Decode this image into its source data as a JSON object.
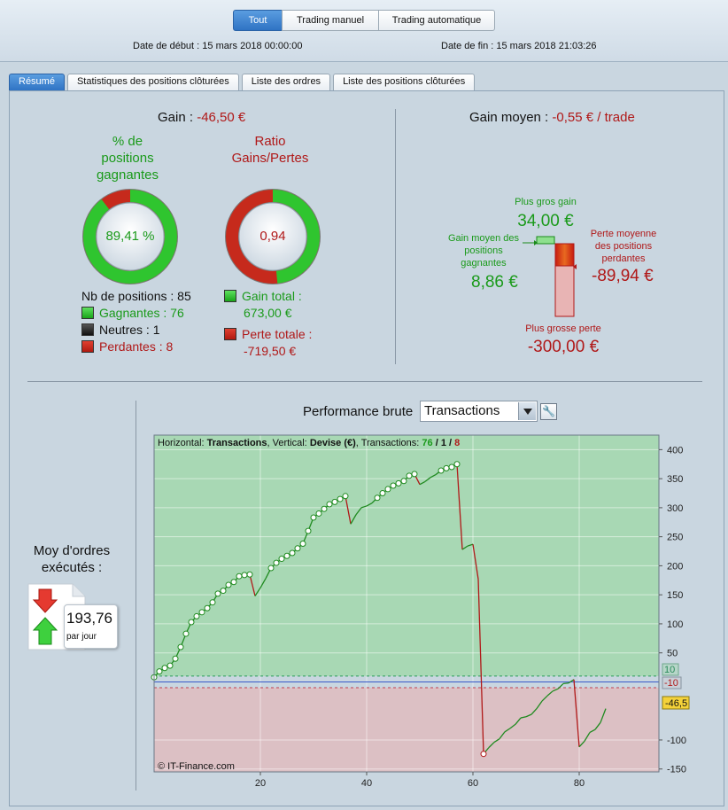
{
  "modes": [
    "Tout",
    "Trading manuel",
    "Trading automatique"
  ],
  "dates": {
    "start_label": "Date de début :",
    "start_value": "15 mars 2018 00:00:00",
    "end_label": "Date de fin :",
    "end_value": "15 mars 2018 21:03:26"
  },
  "tabs": [
    "Résumé",
    "Statistiques des positions clôturées",
    "Liste des ordres",
    "Liste des positions clôturées"
  ],
  "summary": {
    "gain_label": "Gain :",
    "gain_value": "-46,50 €",
    "win_pct_title": "% de positions gagnantes",
    "win_pct_value": "89,41 %",
    "win_pct_fraction": 0.8941,
    "ratio_title": "Ratio Gains/Pertes",
    "ratio_value": "0,94",
    "ratio_fraction": 0.483,
    "positions_label": "Nb de positions : 85",
    "winners": "Gagnantes : 76",
    "neutral": "Neutres : 1",
    "losers": "Perdantes : 8",
    "gain_total_label": "Gain total :",
    "gain_total_value": "673,00 €",
    "loss_total_label": "Perte totale :",
    "loss_total_value": "-719,50 €"
  },
  "avg": {
    "label": "Gain moyen :",
    "value": "-0,55 € / trade",
    "biggest_gain_label": "Plus gros gain",
    "biggest_gain_value": "34,00 €",
    "avg_win_label_1": "Gain moyen des",
    "avg_win_label_2": "positions",
    "avg_win_label_3": "gagnantes",
    "avg_win_value": "8,86 €",
    "avg_loss_label_1": "Perte moyenne",
    "avg_loss_label_2": "des positions",
    "avg_loss_label_3": "perdantes",
    "avg_loss_value": "-89,94 €",
    "biggest_loss_label": "Plus grosse perte",
    "biggest_loss_value": "-300,00 €"
  },
  "orders": {
    "title_1": "Moy d'ordres",
    "title_2": "exécutés :",
    "value": "193,76",
    "unit": "par jour"
  },
  "performance": {
    "title": "Performance brute",
    "selected": "Transactions",
    "legend_h": "Horizontal:",
    "legend_h_val": "Transactions",
    "legend_v": ", Vertical:",
    "legend_v_val": "Devise (€)",
    "legend_t": ", Transactions:",
    "legend_win": "76",
    "legend_sep1": " / ",
    "legend_neu": "1",
    "legend_sep2": " / ",
    "legend_loss": "8",
    "copyright": "© IT-Finance.com",
    "band_upper": "10",
    "band_lower": "-10",
    "last_value": "-46,5"
  },
  "chart_data": {
    "type": "line",
    "xlabel": "Transactions",
    "ylabel": "Devise (€)",
    "xlim": [
      0,
      95
    ],
    "ylim": [
      -155,
      425
    ],
    "xticks": [
      20,
      40,
      60,
      80
    ],
    "yticks": [
      400,
      350,
      300,
      250,
      200,
      150,
      100,
      50,
      -100,
      -150
    ],
    "x": [
      0,
      1,
      2,
      3,
      4,
      5,
      6,
      7,
      8,
      9,
      10,
      11,
      12,
      13,
      14,
      15,
      16,
      17,
      18,
      19,
      20,
      21,
      22,
      23,
      24,
      25,
      26,
      27,
      28,
      29,
      30,
      31,
      32,
      33,
      34,
      35,
      36,
      37,
      38,
      39,
      40,
      41,
      42,
      43,
      44,
      45,
      46,
      47,
      48,
      49,
      50,
      51,
      52,
      53,
      54,
      55,
      56,
      57,
      58,
      59,
      60,
      61,
      62,
      63,
      64,
      65,
      66,
      67,
      68,
      69,
      70,
      71,
      72,
      73,
      74,
      75,
      76,
      77,
      78,
      79,
      80,
      81,
      82,
      83,
      84,
      85
    ],
    "y": [
      8,
      18,
      24,
      28,
      40,
      60,
      83,
      103,
      113,
      120,
      127,
      137,
      152,
      157,
      167,
      172,
      182,
      184,
      185,
      148,
      162,
      178,
      196,
      205,
      212,
      217,
      222,
      230,
      238,
      260,
      283,
      290,
      298,
      306,
      310,
      315,
      320,
      272,
      288,
      300,
      303,
      308,
      317,
      325,
      332,
      338,
      342,
      346,
      355,
      358,
      340,
      345,
      352,
      357,
      364,
      368,
      370,
      375,
      228,
      234,
      237,
      177,
      -124,
      -113,
      -104,
      -98,
      -86,
      -80,
      -73,
      -62,
      -60,
      -56,
      -46,
      -33,
      -24,
      -16,
      -12,
      -3,
      -2,
      4,
      -112,
      -102,
      -87,
      -82,
      -70,
      -46
    ],
    "marker_indices": [
      0,
      1,
      2,
      3,
      4,
      5,
      6,
      7,
      8,
      9,
      10,
      11,
      12,
      13,
      14,
      15,
      16,
      17,
      18,
      22,
      23,
      24,
      25,
      26,
      27,
      28,
      29,
      30,
      31,
      32,
      33,
      34,
      35,
      36,
      42,
      43,
      44,
      45,
      46,
      47,
      48,
      49,
      54,
      55,
      56,
      57,
      62
    ],
    "colors": {
      "up": "#1f8a1f",
      "down": "#b01818",
      "gain_zone": "#a8d8b4",
      "loss_zone": "#dcc0c4"
    }
  }
}
